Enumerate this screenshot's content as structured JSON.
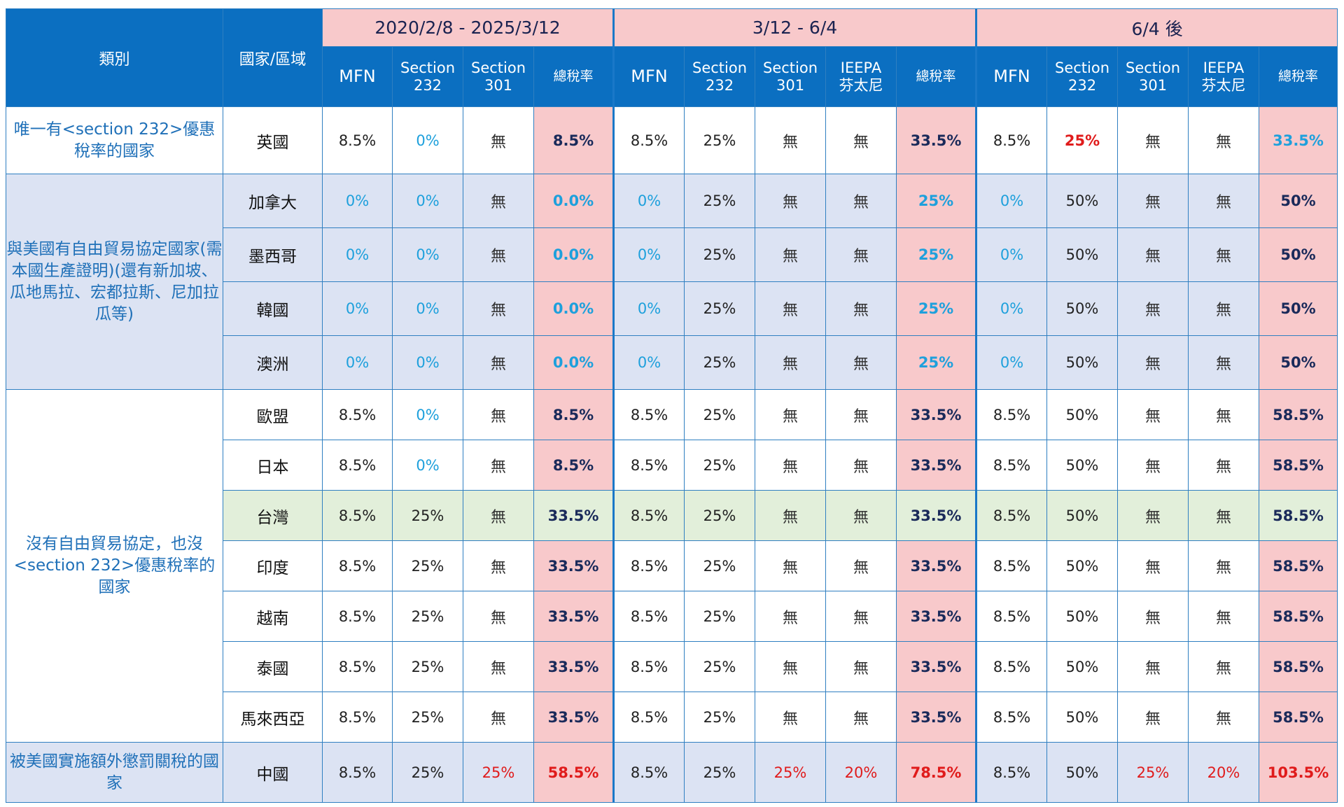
{
  "header": {
    "category": "類別",
    "country": "國家/區域",
    "periods": [
      "2020/2/8 - 2025/3/12",
      "3/12 - 6/4",
      "6/4 後"
    ],
    "sub": {
      "mfn": "MFN",
      "s232_line1": "Section",
      "s232_line2": "232",
      "s301_line1": "Section",
      "s301_line2": "301",
      "ieepa_line1": "IEEPA",
      "ieepa_line2": "芬太尼",
      "total": "總稅率"
    }
  },
  "groups": [
    {
      "label": "唯一有<section 232>優惠稅率的國家"
    },
    {
      "label": "與美國有自由貿易協定國家(需本國生產證明)(還有新加坡、瓜地馬拉、宏都拉斯、尼加拉瓜等)"
    },
    {
      "label": "沒有自由貿易協定，也沒<section 232>優惠稅率的國家"
    },
    {
      "label": "被美國實施額外懲罰關稅的國家"
    }
  ],
  "rows": [
    {
      "country": "英國",
      "p1": [
        "8.5%",
        "0%",
        "無",
        "8.5%"
      ],
      "p2": [
        "8.5%",
        "25%",
        "無",
        "無",
        "33.5%"
      ],
      "p3": [
        "8.5%",
        "25%",
        "無",
        "無",
        "33.5%"
      ]
    },
    {
      "country": "加拿大",
      "p1": [
        "0%",
        "0%",
        "無",
        "0.0%"
      ],
      "p2": [
        "0%",
        "25%",
        "無",
        "無",
        "25%"
      ],
      "p3": [
        "0%",
        "50%",
        "無",
        "無",
        "50%"
      ]
    },
    {
      "country": "墨西哥",
      "p1": [
        "0%",
        "0%",
        "無",
        "0.0%"
      ],
      "p2": [
        "0%",
        "25%",
        "無",
        "無",
        "25%"
      ],
      "p3": [
        "0%",
        "50%",
        "無",
        "無",
        "50%"
      ]
    },
    {
      "country": "韓國",
      "p1": [
        "0%",
        "0%",
        "無",
        "0.0%"
      ],
      "p2": [
        "0%",
        "25%",
        "無",
        "無",
        "25%"
      ],
      "p3": [
        "0%",
        "50%",
        "無",
        "無",
        "50%"
      ]
    },
    {
      "country": "澳洲",
      "p1": [
        "0%",
        "0%",
        "無",
        "0.0%"
      ],
      "p2": [
        "0%",
        "25%",
        "無",
        "無",
        "25%"
      ],
      "p3": [
        "0%",
        "50%",
        "無",
        "無",
        "50%"
      ]
    },
    {
      "country": "歐盟",
      "p1": [
        "8.5%",
        "0%",
        "無",
        "8.5%"
      ],
      "p2": [
        "8.5%",
        "25%",
        "無",
        "無",
        "33.5%"
      ],
      "p3": [
        "8.5%",
        "50%",
        "無",
        "無",
        "58.5%"
      ]
    },
    {
      "country": "日本",
      "p1": [
        "8.5%",
        "0%",
        "無",
        "8.5%"
      ],
      "p2": [
        "8.5%",
        "25%",
        "無",
        "無",
        "33.5%"
      ],
      "p3": [
        "8.5%",
        "50%",
        "無",
        "無",
        "58.5%"
      ]
    },
    {
      "country": "台灣",
      "p1": [
        "8.5%",
        "25%",
        "無",
        "33.5%"
      ],
      "p2": [
        "8.5%",
        "25%",
        "無",
        "無",
        "33.5%"
      ],
      "p3": [
        "8.5%",
        "50%",
        "無",
        "無",
        "58.5%"
      ]
    },
    {
      "country": "印度",
      "p1": [
        "8.5%",
        "25%",
        "無",
        "33.5%"
      ],
      "p2": [
        "8.5%",
        "25%",
        "無",
        "無",
        "33.5%"
      ],
      "p3": [
        "8.5%",
        "50%",
        "無",
        "無",
        "58.5%"
      ]
    },
    {
      "country": "越南",
      "p1": [
        "8.5%",
        "25%",
        "無",
        "33.5%"
      ],
      "p2": [
        "8.5%",
        "25%",
        "無",
        "無",
        "33.5%"
      ],
      "p3": [
        "8.5%",
        "50%",
        "無",
        "無",
        "58.5%"
      ]
    },
    {
      "country": "泰國",
      "p1": [
        "8.5%",
        "25%",
        "無",
        "33.5%"
      ],
      "p2": [
        "8.5%",
        "25%",
        "無",
        "無",
        "33.5%"
      ],
      "p3": [
        "8.5%",
        "50%",
        "無",
        "無",
        "58.5%"
      ]
    },
    {
      "country": "馬來西亞",
      "p1": [
        "8.5%",
        "25%",
        "無",
        "33.5%"
      ],
      "p2": [
        "8.5%",
        "25%",
        "無",
        "無",
        "33.5%"
      ],
      "p3": [
        "8.5%",
        "50%",
        "無",
        "無",
        "58.5%"
      ]
    },
    {
      "country": "中國",
      "p1": [
        "8.5%",
        "25%",
        "25%",
        "58.5%"
      ],
      "p2": [
        "8.5%",
        "25%",
        "25%",
        "20%",
        "78.5%"
      ],
      "p3": [
        "8.5%",
        "50%",
        "25%",
        "20%",
        "103.5%"
      ]
    }
  ],
  "colors": {
    "header_blue": "#0b6fc1",
    "period_pink": "#f8c9cb",
    "row_blue": "#dce3f3",
    "row_green": "#e2efda",
    "zero_cyan": "#1ea0dc",
    "alert_red": "#e01b1b"
  }
}
